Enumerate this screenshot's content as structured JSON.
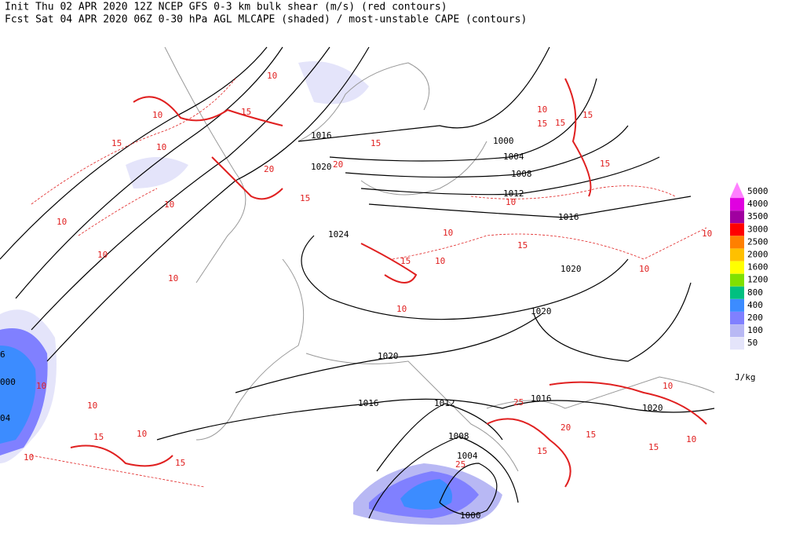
{
  "header": {
    "init_line": "Init  Thu 02 APR 2020 12Z  NCEP GFS 0-3 km bulk shear (m/s) (red contours)",
    "forecast_line": "Fcst Sat 04 APR 2020 06Z  0-30 hPa AGL MLCAPE (shaded) / most-unstable CAPE (contours)"
  },
  "legend": {
    "unit": "J/kg",
    "levels": [
      {
        "label": "5000",
        "color": "#ff80ff"
      },
      {
        "label": "4000",
        "color": "#e000e0"
      },
      {
        "label": "3500",
        "color": "#a000a0"
      },
      {
        "label": "3000",
        "color": "#ff0000"
      },
      {
        "label": "2500",
        "color": "#ff8000"
      },
      {
        "label": "2000",
        "color": "#ffc000"
      },
      {
        "label": "1600",
        "color": "#ffff00"
      },
      {
        "label": "1200",
        "color": "#80e000"
      },
      {
        "label": "800",
        "color": "#00c080"
      },
      {
        "label": "400",
        "color": "#3c8cff"
      },
      {
        "label": "200",
        "color": "#8080ff"
      },
      {
        "label": "100",
        "color": "#b8b8f4"
      },
      {
        "label": "50",
        "color": "#e4e4fa"
      }
    ]
  },
  "map": {
    "isobar_labels": [
      "1016",
      "1020",
      "1000",
      "1004",
      "1008",
      "1012",
      "1016",
      "1020",
      "1024",
      "1020",
      "1020",
      "1016",
      "1012",
      "1008",
      "1004",
      "1000",
      "1016",
      "1020",
      "6",
      "000",
      "04"
    ],
    "shear_labels": [
      "10",
      "15",
      "10",
      "15",
      "10",
      "20",
      "15",
      "10",
      "10",
      "10",
      "10",
      "15",
      "10",
      "10",
      "10",
      "10",
      "15",
      "10",
      "15",
      "10",
      "15",
      "15",
      "15",
      "15",
      "10",
      "15",
      "20",
      "10",
      "10",
      "15",
      "10",
      "10",
      "10",
      "15",
      "15",
      "15",
      "20",
      "25",
      "25",
      "10"
    ]
  }
}
